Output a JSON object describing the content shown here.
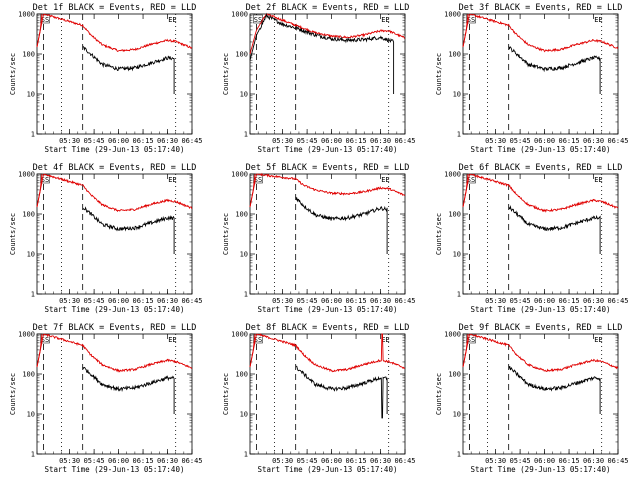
{
  "panels": [
    {
      "title": "Det 1f BLACK = Events, RED = LLD",
      "kind": "a",
      "spike": false
    },
    {
      "title": "Det 2f BLACK = Events, RED = LLD",
      "kind": "b",
      "spike": false
    },
    {
      "title": "Det 3f BLACK = Events, RED = LLD",
      "kind": "a",
      "spike": false
    },
    {
      "title": "Det 4f BLACK = Events, RED = LLD",
      "kind": "a",
      "spike": false
    },
    {
      "title": "Det 5f BLACK = Events, RED = LLD",
      "kind": "c",
      "spike": false
    },
    {
      "title": "Det 6f BLACK = Events, RED = LLD",
      "kind": "a",
      "spike": false
    },
    {
      "title": "Det 7f BLACK = Events, RED = LLD",
      "kind": "a",
      "spike": false
    },
    {
      "title": "Det 8f BLACK = Events, RED = LLD",
      "kind": "a",
      "spike": true
    },
    {
      "title": "Det 9f BLACK = Events, RED = LLD",
      "kind": "a",
      "spike": false
    }
  ],
  "chart_data": {
    "type": "line",
    "ylabel": "Counts/sec",
    "xlabel": "Start Time (29-Jun-13 05:17:40)",
    "yscale": "log",
    "ylim": [
      1,
      1000
    ],
    "yticks": [
      {
        "v": 1,
        "label": "1"
      },
      {
        "v": 10,
        "label": "10"
      },
      {
        "v": 100,
        "label": "100"
      },
      {
        "v": 1000,
        "label": "1000"
      }
    ],
    "xlim_minutes": [
      0,
      95
    ],
    "xticks": [
      {
        "t": 20,
        "label": "05:30"
      },
      {
        "t": 35,
        "label": "05:45"
      },
      {
        "t": 50,
        "label": "06:00"
      },
      {
        "t": 65,
        "label": "06:15"
      },
      {
        "t": 80,
        "label": "06:30"
      },
      {
        "t": 95,
        "label": "06:45"
      }
    ],
    "markers": {
      "SS": 4,
      "EE": 83
    },
    "dotted_lines": [
      15,
      85
    ],
    "dashed_lines": [
      4,
      28
    ],
    "series": [
      {
        "name": "BLACK = Events",
        "color": "#000000"
      },
      {
        "name": "RED = LLD",
        "color": "#e00000"
      }
    ],
    "profiles": {
      "a": {
        "red": [
          [
            0,
            150
          ],
          [
            4,
            1000
          ],
          [
            28,
            520
          ],
          [
            33,
            300
          ],
          [
            40,
            170
          ],
          [
            50,
            120
          ],
          [
            60,
            130
          ],
          [
            70,
            175
          ],
          [
            80,
            220
          ],
          [
            85,
            205
          ],
          [
            95,
            140
          ]
        ],
        "black": [
          [
            28,
            150
          ],
          [
            33,
            100
          ],
          [
            40,
            55
          ],
          [
            50,
            42
          ],
          [
            60,
            45
          ],
          [
            70,
            60
          ],
          [
            80,
            80
          ],
          [
            84,
            78
          ]
        ]
      },
      "b": {
        "red": [
          [
            0,
            100
          ],
          [
            4,
            400
          ],
          [
            10,
            1000
          ],
          [
            20,
            700
          ],
          [
            28,
            520
          ],
          [
            40,
            340
          ],
          [
            50,
            280
          ],
          [
            60,
            260
          ],
          [
            70,
            300
          ],
          [
            80,
            380
          ],
          [
            85,
            380
          ],
          [
            95,
            250
          ]
        ],
        "black": [
          [
            0,
            70
          ],
          [
            4,
            300
          ],
          [
            10,
            900
          ],
          [
            20,
            560
          ],
          [
            28,
            450
          ],
          [
            40,
            300
          ],
          [
            50,
            240
          ],
          [
            60,
            220
          ],
          [
            70,
            230
          ],
          [
            80,
            260
          ],
          [
            88,
            200
          ]
        ]
      },
      "c": {
        "red": [
          [
            0,
            150
          ],
          [
            4,
            1000
          ],
          [
            28,
            750
          ],
          [
            33,
            520
          ],
          [
            40,
            400
          ],
          [
            50,
            330
          ],
          [
            60,
            320
          ],
          [
            70,
            360
          ],
          [
            80,
            450
          ],
          [
            85,
            430
          ],
          [
            95,
            290
          ]
        ],
        "black": [
          [
            28,
            260
          ],
          [
            33,
            160
          ],
          [
            40,
            95
          ],
          [
            50,
            75
          ],
          [
            60,
            80
          ],
          [
            70,
            100
          ],
          [
            80,
            140
          ],
          [
            84,
            130
          ]
        ]
      }
    }
  }
}
